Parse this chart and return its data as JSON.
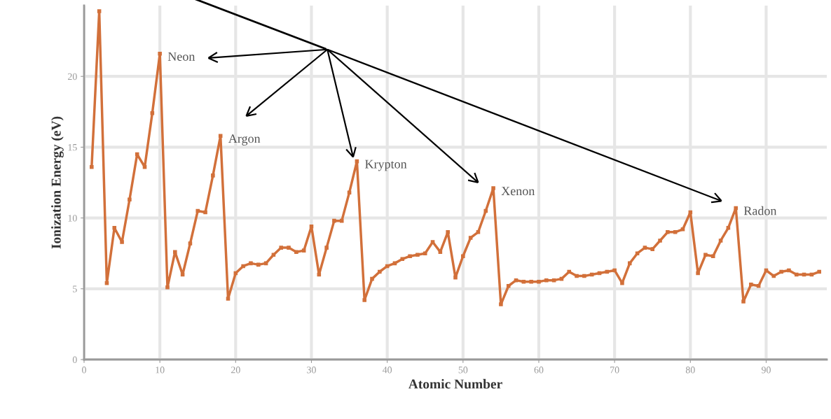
{
  "chart_data": {
    "type": "line",
    "xlabel": "Atomic Number",
    "ylabel": "Ionization Energy (eV)",
    "x": [
      1,
      2,
      3,
      4,
      5,
      6,
      7,
      8,
      9,
      10,
      11,
      12,
      13,
      14,
      15,
      16,
      17,
      18,
      19,
      20,
      21,
      22,
      23,
      24,
      25,
      26,
      27,
      28,
      29,
      30,
      31,
      32,
      33,
      34,
      35,
      36,
      37,
      38,
      39,
      40,
      41,
      42,
      43,
      44,
      45,
      46,
      47,
      48,
      49,
      50,
      51,
      52,
      53,
      54,
      55,
      56,
      57,
      58,
      59,
      60,
      61,
      62,
      63,
      64,
      65,
      66,
      67,
      68,
      69,
      70,
      71,
      72,
      73,
      74,
      75,
      76,
      77,
      78,
      79,
      80,
      81,
      82,
      83,
      84,
      85,
      86,
      87,
      88,
      89,
      90,
      91,
      92,
      93,
      94,
      95,
      96,
      97
    ],
    "series": [
      {
        "color": "#d2703a",
        "values": [
          13.6,
          24.6,
          5.4,
          9.3,
          8.3,
          11.3,
          14.5,
          13.6,
          17.4,
          21.6,
          5.1,
          7.6,
          6.0,
          8.2,
          10.5,
          10.4,
          13.0,
          15.8,
          4.3,
          6.1,
          6.6,
          6.8,
          6.7,
          6.8,
          7.4,
          7.9,
          7.9,
          7.6,
          7.7,
          9.4,
          6.0,
          7.9,
          9.8,
          9.8,
          11.8,
          14.0,
          4.2,
          5.7,
          6.2,
          6.6,
          6.8,
          7.1,
          7.3,
          7.4,
          7.5,
          8.3,
          7.6,
          9.0,
          5.8,
          7.3,
          8.6,
          9.0,
          10.5,
          12.1,
          3.9,
          5.2,
          5.6,
          5.5,
          5.5,
          5.5,
          5.6,
          5.6,
          5.7,
          6.2,
          5.9,
          5.9,
          6.0,
          6.1,
          6.2,
          6.3,
          5.4,
          6.8,
          7.5,
          7.9,
          7.8,
          8.4,
          9.0,
          9.0,
          9.2,
          10.4,
          6.1,
          7.4,
          7.3,
          8.4,
          9.3,
          10.7,
          4.1,
          5.3,
          5.2,
          6.3,
          5.9,
          6.2,
          6.3,
          6.0,
          6.0,
          6.0,
          6.2
        ]
      }
    ],
    "xlim": [
      0,
      98
    ],
    "ylim": [
      0,
      25
    ],
    "xticks": [
      0,
      10,
      20,
      30,
      40,
      50,
      60,
      70,
      80,
      90
    ],
    "yticks": [
      0,
      5,
      10,
      15,
      20
    ],
    "grid": true,
    "marker": "square",
    "line_style": "solid",
    "annotations": [
      {
        "text": "Neon",
        "x": 10,
        "y": 21.6
      },
      {
        "text": "Argon",
        "x": 18,
        "y": 15.8
      },
      {
        "text": "Krypton",
        "x": 36,
        "y": 14.0
      },
      {
        "text": "Xenon",
        "x": 54,
        "y": 12.1
      },
      {
        "text": "Radon",
        "x": 86,
        "y": 10.7
      }
    ]
  }
}
